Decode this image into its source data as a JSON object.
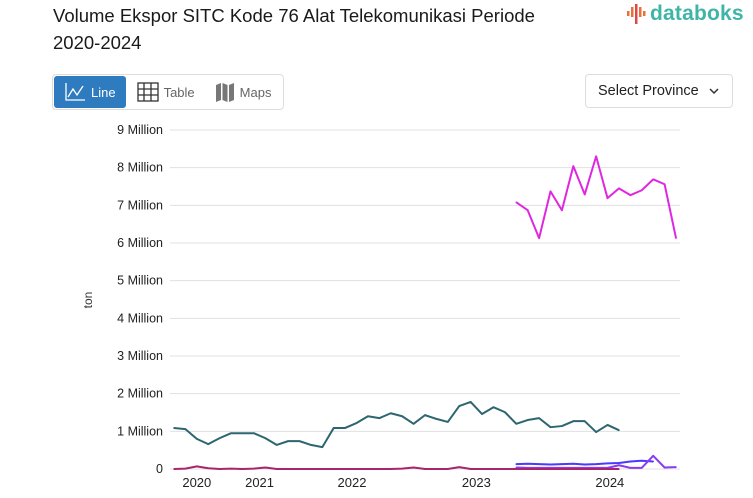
{
  "header": {
    "title": "Volume Ekspor SITC Kode 76 Alat Telekomunikasi Periode 2020-2024",
    "logo": "databoks"
  },
  "tabs": [
    {
      "label": "Line",
      "icon": "line-chart-icon",
      "active": true
    },
    {
      "label": "Table",
      "icon": "table-icon",
      "active": false
    },
    {
      "label": "Maps",
      "icon": "map-icon",
      "active": false
    }
  ],
  "province_select": {
    "label": "Select Province"
  },
  "chart_data": {
    "type": "line",
    "title": "",
    "xlabel": "",
    "ylabel": "ton",
    "ylim": [
      0,
      9000000
    ],
    "yticks": [
      0,
      1000000,
      2000000,
      3000000,
      4000000,
      5000000,
      6000000,
      7000000,
      8000000,
      9000000
    ],
    "ytick_labels": [
      "0",
      "1 Million",
      "2 Million",
      "3 Million",
      "4 Million",
      "5 Million",
      "6 Million",
      "7 Million",
      "8 Million",
      "9 Million"
    ],
    "xlim": [
      0,
      44.5
    ],
    "xticks": [
      {
        "x": 2,
        "label": "2020"
      },
      {
        "x": 7.5,
        "label": "2021"
      },
      {
        "x": 15.6,
        "label": "2022"
      },
      {
        "x": 26.5,
        "label": "2023"
      },
      {
        "x": 38.2,
        "label": "2024"
      }
    ],
    "grid": true,
    "series": [
      {
        "color": "#2c6670",
        "start": 0,
        "values": [
          1090000,
          1060000,
          800000,
          660000,
          820000,
          950000,
          950000,
          950000,
          820000,
          640000,
          740000,
          740000,
          640000,
          580000,
          1090000,
          1090000,
          1220000,
          1400000,
          1350000,
          1480000,
          1400000,
          1200000,
          1430000,
          1330000,
          1250000,
          1670000,
          1780000,
          1460000,
          1640000,
          1510000,
          1200000,
          1300000,
          1350000,
          1110000,
          1140000,
          1270000,
          1270000,
          980000,
          1170000,
          1030000
        ]
      },
      {
        "color": "#e027e0",
        "start": 30,
        "values": [
          7080000,
          6870000,
          6130000,
          7370000,
          6870000,
          8040000,
          7290000,
          8300000,
          7190000,
          7450000,
          7270000,
          7400000,
          7690000,
          7560000,
          6130000
        ]
      },
      {
        "color": "#4a3aff",
        "start": 30,
        "values": [
          130000,
          140000,
          130000,
          120000,
          130000,
          140000,
          120000,
          130000,
          150000,
          160000,
          200000,
          220000,
          200000
        ]
      },
      {
        "color": "#8a3cf0",
        "start": 30,
        "values": [
          40000,
          30000,
          30000,
          30000,
          30000,
          30000,
          30000,
          30000,
          30000,
          100000,
          30000,
          30000,
          350000,
          40000,
          50000
        ]
      },
      {
        "color": "#a8256e",
        "start": 0,
        "values": [
          0,
          10000,
          70000,
          20000,
          0,
          10000,
          0,
          10000,
          40000,
          0,
          0,
          0,
          0,
          0,
          0,
          0,
          0,
          0,
          0,
          0,
          10000,
          40000,
          0,
          0,
          0,
          50000,
          0,
          0,
          0,
          0,
          0,
          0,
          0,
          0,
          0,
          0,
          0,
          0,
          0,
          0
        ]
      }
    ]
  }
}
